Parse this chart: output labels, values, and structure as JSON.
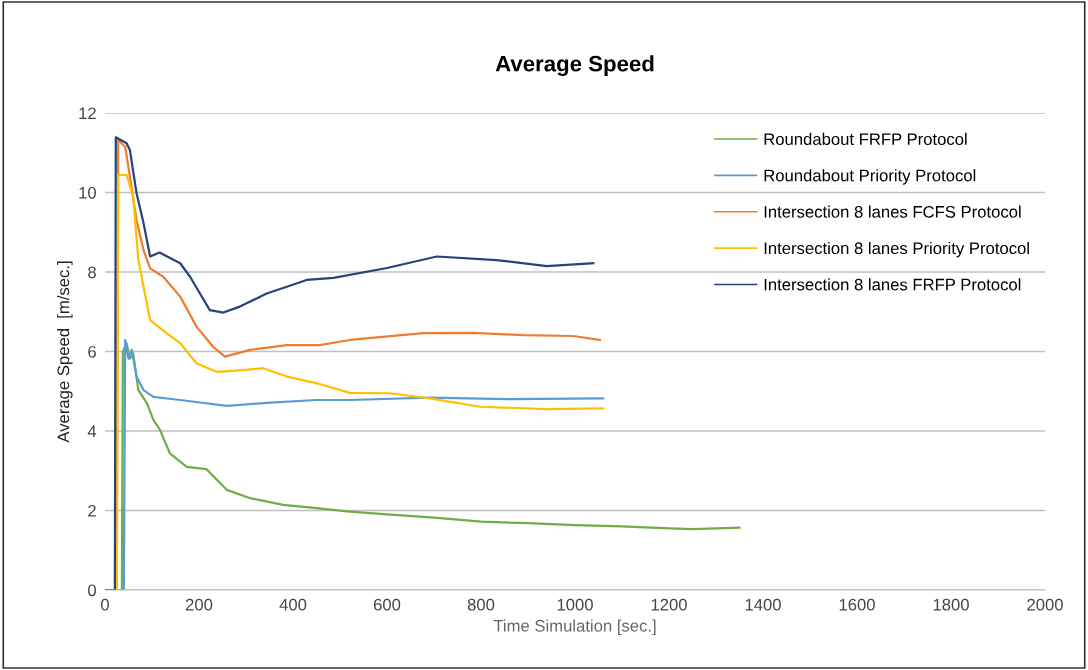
{
  "chart_data": {
    "type": "line",
    "title": "Average Speed",
    "xlabel": "Time Simulation [sec.]",
    "ylabel": "Average Speed  [m/sec.]",
    "xlim": [
      0,
      2000
    ],
    "xticks": [
      0,
      200,
      400,
      600,
      800,
      1000,
      1200,
      1400,
      1600,
      1800,
      2000
    ],
    "ylim": [
      0,
      12
    ],
    "yticks": [
      0,
      2,
      4,
      6,
      8,
      10,
      12
    ],
    "grid": "y",
    "legend": "top right",
    "marker": "none",
    "line_style": "solid",
    "series": [
      {
        "name": "Roundabout FRFP Protocol",
        "color": "#70ad47",
        "x": [
          0,
          36,
          38,
          46,
          53,
          60,
          71,
          89,
          103,
          117,
          138,
          174,
          216,
          259,
          309,
          379,
          450,
          521,
          600,
          700,
          800,
          900,
          1000,
          1100,
          1200,
          1250,
          1350
        ],
        "values": [
          0,
          0,
          6.0,
          6.21,
          5.82,
          5.95,
          5.03,
          4.7,
          4.28,
          4.03,
          3.44,
          3.1,
          3.04,
          2.52,
          2.31,
          2.14,
          2.06,
          1.97,
          1.9,
          1.82,
          1.72,
          1.68,
          1.63,
          1.6,
          1.55,
          1.53,
          1.57
        ]
      },
      {
        "name": "Roundabout Priority Protocol",
        "color": "#5b9bd5",
        "x": [
          0,
          40,
          43,
          50,
          57,
          67,
          82,
          103,
          160,
          259,
          344,
          450,
          521,
          691,
          854,
          1060
        ],
        "values": [
          0,
          0,
          6.29,
          5.82,
          6.04,
          5.37,
          5.03,
          4.86,
          4.78,
          4.63,
          4.71,
          4.78,
          4.78,
          4.84,
          4.8,
          4.82
        ]
      },
      {
        "name": "Intersection 8 lanes FCFS Protocol",
        "color": "#ed7d31",
        "x": [
          0,
          25,
          28,
          43,
          53,
          67,
          82,
          96,
          124,
          160,
          195,
          230,
          255,
          309,
          387,
          457,
          521,
          677,
          784,
          890,
          996,
          1053
        ],
        "values": [
          0,
          0,
          11.32,
          11.15,
          10.4,
          9.31,
          8.55,
          8.09,
          7.88,
          7.38,
          6.62,
          6.12,
          5.87,
          6.04,
          6.16,
          6.16,
          6.29,
          6.46,
          6.47,
          6.41,
          6.39,
          6.29
        ]
      },
      {
        "name": "Intersection 8 lanes Priority Protocol",
        "color": "#ffc000",
        "x": [
          0,
          25,
          28,
          46,
          60,
          71,
          82,
          96,
          131,
          160,
          195,
          238,
          294,
          337,
          387,
          451,
          521,
          606,
          691,
          798,
          940,
          1060
        ],
        "values": [
          0,
          0,
          10.44,
          10.44,
          9.89,
          8.3,
          7.63,
          6.79,
          6.46,
          6.21,
          5.7,
          5.49,
          5.53,
          5.58,
          5.37,
          5.2,
          4.96,
          4.95,
          4.82,
          4.61,
          4.55,
          4.57
        ]
      },
      {
        "name": "Intersection 8 lanes FRFP Protocol",
        "color": "#264478",
        "x": [
          0,
          21,
          23,
          46,
          53,
          67,
          82,
          96,
          116,
          160,
          181,
          202,
          223,
          252,
          287,
          344,
          387,
          429,
          486,
          600,
          706,
          833,
          940,
          1039
        ],
        "values": [
          0,
          0,
          11.39,
          11.24,
          11.07,
          9.99,
          9.23,
          8.39,
          8.49,
          8.22,
          7.88,
          7.46,
          7.04,
          6.98,
          7.13,
          7.46,
          7.63,
          7.8,
          7.85,
          8.1,
          8.39,
          8.3,
          8.15,
          8.22
        ]
      }
    ]
  }
}
